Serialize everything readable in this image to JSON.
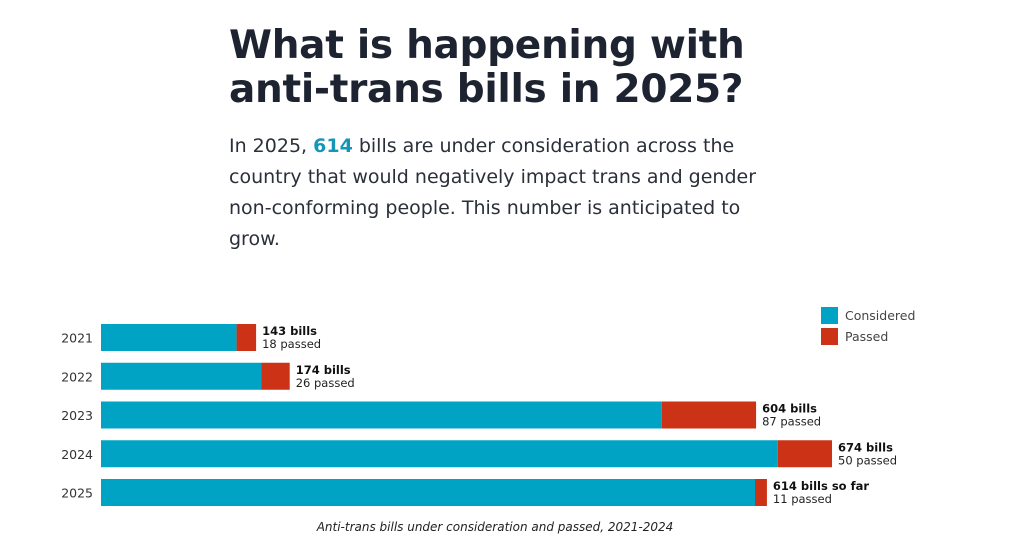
{
  "heading": {
    "title": "What is happening with anti-trans bills in 2025?",
    "intro_before": "In 2025, ",
    "intro_highlight": "614",
    "intro_after": " bills are under consideration across the country that would negatively impact trans and gender non-conforming people. This number is anticipated to grow."
  },
  "chart_data": {
    "type": "bar",
    "orientation": "horizontal",
    "stacked": true,
    "categories": [
      "2021",
      "2022",
      "2023",
      "2024",
      "2025"
    ],
    "series": [
      {
        "name": "Considered",
        "values": [
          125,
          148,
          517,
          624,
          603
        ],
        "color": "#00a3c4"
      },
      {
        "name": "Passed",
        "values": [
          18,
          26,
          87,
          50,
          11
        ],
        "color": "#cc3316"
      }
    ],
    "totals": [
      143,
      174,
      604,
      674,
      614
    ],
    "labels": {
      "total": [
        "143 bills",
        "174 bills",
        "604 bills",
        "674 bills",
        "614 bills so far"
      ],
      "passed": [
        "18 passed",
        "26 passed",
        "87 passed",
        "50 passed",
        "11 passed"
      ]
    },
    "xlim": [
      0,
      674
    ],
    "legend_position": "top-right",
    "grid": false,
    "caption": "Anti-trans bills under consideration and passed, 2021-2024"
  }
}
